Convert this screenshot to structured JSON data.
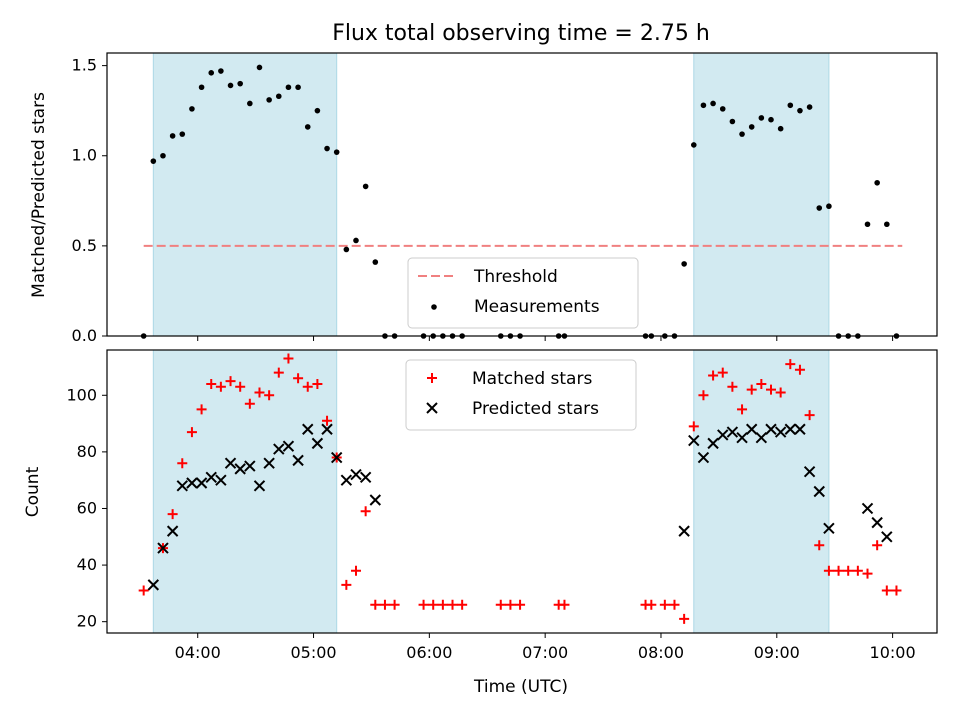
{
  "chart_data": [
    {
      "type": "scatter",
      "title": "Flux total observing time = 2.75 h",
      "xlabel": "",
      "ylabel": "Matched/Predicted stars",
      "xlim": [
        "03:13",
        "10:23"
      ],
      "ylim": [
        0,
        1.57
      ],
      "yticks": [
        0.0,
        0.5,
        1.0,
        1.5
      ],
      "ytick_labels": [
        "0.0",
        "0.5",
        "1.0",
        "1.5"
      ],
      "xticks": [
        "04:00",
        "05:00",
        "06:00",
        "07:00",
        "08:00",
        "09:00",
        "10:00"
      ],
      "x_tick_labels_shown": false,
      "shaded_intervals": [
        [
          "03:37",
          "05:12"
        ],
        [
          "08:17",
          "09:27"
        ]
      ],
      "shade_color": "#add8e6",
      "threshold": {
        "name": "Threshold",
        "y": 0.5,
        "x_range": [
          "03:32",
          "10:05"
        ],
        "color": "#f08080"
      },
      "legend": [
        "Threshold",
        "Measurements"
      ],
      "legend_position": "lower center",
      "series": [
        {
          "name": "Measurements",
          "color": "#000000",
          "marker": "dot",
          "points": [
            [
              "03:32",
              0.0
            ],
            [
              "03:37",
              0.97
            ],
            [
              "03:42",
              1.0
            ],
            [
              "03:47",
              1.11
            ],
            [
              "03:52",
              1.12
            ],
            [
              "03:57",
              1.26
            ],
            [
              "04:02",
              1.38
            ],
            [
              "04:07",
              1.46
            ],
            [
              "04:12",
              1.47
            ],
            [
              "04:17",
              1.39
            ],
            [
              "04:22",
              1.4
            ],
            [
              "04:27",
              1.29
            ],
            [
              "04:32",
              1.49
            ],
            [
              "04:37",
              1.31
            ],
            [
              "04:42",
              1.33
            ],
            [
              "04:47",
              1.38
            ],
            [
              "04:52",
              1.38
            ],
            [
              "04:57",
              1.16
            ],
            [
              "05:02",
              1.25
            ],
            [
              "05:07",
              1.04
            ],
            [
              "05:12",
              1.02
            ],
            [
              "05:17",
              0.48
            ],
            [
              "05:22",
              0.53
            ],
            [
              "05:27",
              0.83
            ],
            [
              "05:32",
              0.41
            ],
            [
              "05:37",
              0.0
            ],
            [
              "05:42",
              0.0
            ],
            [
              "05:57",
              0.0
            ],
            [
              "06:02",
              0.0
            ],
            [
              "06:07",
              0.0
            ],
            [
              "06:12",
              0.0
            ],
            [
              "06:17",
              0.0
            ],
            [
              "06:37",
              0.0
            ],
            [
              "06:42",
              0.0
            ],
            [
              "06:47",
              0.0
            ],
            [
              "07:07",
              0.0
            ],
            [
              "07:10",
              0.0
            ],
            [
              "07:52",
              0.0
            ],
            [
              "07:55",
              0.0
            ],
            [
              "08:02",
              0.0
            ],
            [
              "08:07",
              0.0
            ],
            [
              "08:12",
              0.4
            ],
            [
              "08:17",
              1.06
            ],
            [
              "08:22",
              1.28
            ],
            [
              "08:27",
              1.29
            ],
            [
              "08:32",
              1.26
            ],
            [
              "08:37",
              1.19
            ],
            [
              "08:42",
              1.12
            ],
            [
              "08:47",
              1.16
            ],
            [
              "08:52",
              1.21
            ],
            [
              "08:57",
              1.2
            ],
            [
              "09:02",
              1.15
            ],
            [
              "09:07",
              1.28
            ],
            [
              "09:12",
              1.25
            ],
            [
              "09:17",
              1.27
            ],
            [
              "09:22",
              0.71
            ],
            [
              "09:27",
              0.72
            ],
            [
              "09:32",
              0.0
            ],
            [
              "09:37",
              0.0
            ],
            [
              "09:42",
              0.0
            ],
            [
              "09:47",
              0.62
            ],
            [
              "09:52",
              0.85
            ],
            [
              "09:57",
              0.62
            ],
            [
              "10:02",
              0.0
            ]
          ]
        }
      ]
    },
    {
      "type": "scatter",
      "title": "",
      "xlabel": "Time (UTC)",
      "ylabel": "Count",
      "xlim": [
        "03:13",
        "10:23"
      ],
      "ylim": [
        16,
        116
      ],
      "yticks": [
        20,
        40,
        60,
        80,
        100
      ],
      "ytick_labels": [
        "20",
        "40",
        "60",
        "80",
        "100"
      ],
      "xticks": [
        "04:00",
        "05:00",
        "06:00",
        "07:00",
        "08:00",
        "09:00",
        "10:00"
      ],
      "xtick_labels": [
        "04:00",
        "05:00",
        "06:00",
        "07:00",
        "08:00",
        "09:00",
        "10:00"
      ],
      "shaded_intervals": [
        [
          "03:37",
          "05:12"
        ],
        [
          "08:17",
          "09:27"
        ]
      ],
      "shade_color": "#add8e6",
      "legend": [
        "Matched stars",
        "Predicted stars"
      ],
      "legend_position": "upper center",
      "series": [
        {
          "name": "Matched stars",
          "color": "#ff0000",
          "marker": "plus",
          "points": [
            [
              "03:32",
              31
            ],
            [
              "03:42",
              46
            ],
            [
              "03:47",
              58
            ],
            [
              "03:52",
              76
            ],
            [
              "03:57",
              87
            ],
            [
              "04:02",
              95
            ],
            [
              "04:07",
              104
            ],
            [
              "04:12",
              103
            ],
            [
              "04:17",
              105
            ],
            [
              "04:22",
              103
            ],
            [
              "04:27",
              97
            ],
            [
              "04:32",
              101
            ],
            [
              "04:37",
              100
            ],
            [
              "04:42",
              108
            ],
            [
              "04:47",
              113
            ],
            [
              "04:52",
              106
            ],
            [
              "04:57",
              103
            ],
            [
              "05:02",
              104
            ],
            [
              "05:07",
              91
            ],
            [
              "05:12",
              78
            ],
            [
              "05:17",
              33
            ],
            [
              "05:22",
              38
            ],
            [
              "05:27",
              59
            ],
            [
              "05:32",
              26
            ],
            [
              "05:37",
              26
            ],
            [
              "05:42",
              26
            ],
            [
              "05:57",
              26
            ],
            [
              "06:02",
              26
            ],
            [
              "06:07",
              26
            ],
            [
              "06:12",
              26
            ],
            [
              "06:17",
              26
            ],
            [
              "06:37",
              26
            ],
            [
              "06:42",
              26
            ],
            [
              "06:47",
              26
            ],
            [
              "07:07",
              26
            ],
            [
              "07:10",
              26
            ],
            [
              "07:52",
              26
            ],
            [
              "07:55",
              26
            ],
            [
              "08:02",
              26
            ],
            [
              "08:07",
              26
            ],
            [
              "08:12",
              21
            ],
            [
              "08:17",
              89
            ],
            [
              "08:22",
              100
            ],
            [
              "08:27",
              107
            ],
            [
              "08:32",
              108
            ],
            [
              "08:37",
              103
            ],
            [
              "08:42",
              95
            ],
            [
              "08:47",
              102
            ],
            [
              "08:52",
              104
            ],
            [
              "08:57",
              102
            ],
            [
              "09:02",
              101
            ],
            [
              "09:07",
              111
            ],
            [
              "09:12",
              109
            ],
            [
              "09:17",
              93
            ],
            [
              "09:22",
              47
            ],
            [
              "09:27",
              38
            ],
            [
              "09:32",
              38
            ],
            [
              "09:37",
              38
            ],
            [
              "09:42",
              38
            ],
            [
              "09:47",
              37
            ],
            [
              "09:52",
              47
            ],
            [
              "09:57",
              31
            ],
            [
              "10:02",
              31
            ]
          ]
        },
        {
          "name": "Predicted stars",
          "color": "#000000",
          "marker": "x",
          "points": [
            [
              "03:37",
              33
            ],
            [
              "03:42",
              46
            ],
            [
              "03:47",
              52
            ],
            [
              "03:52",
              68
            ],
            [
              "03:57",
              69
            ],
            [
              "04:02",
              69
            ],
            [
              "04:07",
              71
            ],
            [
              "04:12",
              70
            ],
            [
              "04:17",
              76
            ],
            [
              "04:22",
              74
            ],
            [
              "04:27",
              75
            ],
            [
              "04:32",
              68
            ],
            [
              "04:37",
              76
            ],
            [
              "04:42",
              81
            ],
            [
              "04:47",
              82
            ],
            [
              "04:52",
              77
            ],
            [
              "04:57",
              88
            ],
            [
              "05:02",
              83
            ],
            [
              "05:07",
              88
            ],
            [
              "05:12",
              78
            ],
            [
              "05:17",
              70
            ],
            [
              "05:22",
              72
            ],
            [
              "05:27",
              71
            ],
            [
              "05:32",
              63
            ],
            [
              "08:12",
              52
            ],
            [
              "08:17",
              84
            ],
            [
              "08:22",
              78
            ],
            [
              "08:27",
              83
            ],
            [
              "08:32",
              86
            ],
            [
              "08:37",
              87
            ],
            [
              "08:42",
              85
            ],
            [
              "08:47",
              88
            ],
            [
              "08:52",
              85
            ],
            [
              "08:57",
              88
            ],
            [
              "09:02",
              87
            ],
            [
              "09:07",
              88
            ],
            [
              "09:12",
              88
            ],
            [
              "09:17",
              73
            ],
            [
              "09:22",
              66
            ],
            [
              "09:27",
              53
            ],
            [
              "09:47",
              60
            ],
            [
              "09:52",
              55
            ],
            [
              "09:57",
              50
            ]
          ]
        }
      ]
    }
  ]
}
